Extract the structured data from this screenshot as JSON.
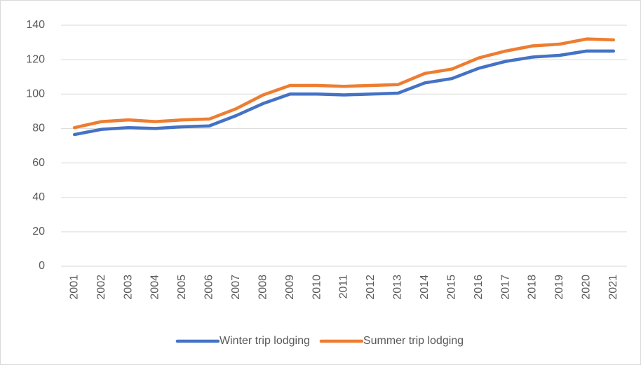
{
  "chart_data": {
    "type": "line",
    "categories": [
      "2001",
      "2002",
      "2003",
      "2004",
      "2005",
      "2006",
      "2007",
      "2008",
      "2009",
      "2010",
      "2011",
      "2012",
      "2013",
      "2014",
      "2015",
      "2016",
      "2017",
      "2018",
      "2019",
      "2020",
      "2021"
    ],
    "series": [
      {
        "name": "Winter trip lodging",
        "color": "#4472c4",
        "values": [
          76.5,
          79.5,
          80.5,
          80,
          81,
          81.5,
          87.5,
          94.5,
          100,
          100,
          99.5,
          100,
          100.5,
          106.5,
          109,
          115,
          119,
          121.5,
          122.5,
          125,
          125
        ]
      },
      {
        "name": "Summer trip lodging",
        "color": "#ed7d31",
        "values": [
          80.5,
          84,
          85,
          84,
          85,
          85.5,
          91.5,
          99.5,
          105,
          105,
          104.5,
          105,
          105.5,
          112,
          114.5,
          121,
          125,
          128,
          129,
          132,
          131.5
        ]
      }
    ],
    "ylim": [
      0,
      140
    ],
    "yticks": [
      0,
      20,
      40,
      60,
      80,
      100,
      120,
      140
    ],
    "grid": true,
    "legend": "bottom"
  }
}
